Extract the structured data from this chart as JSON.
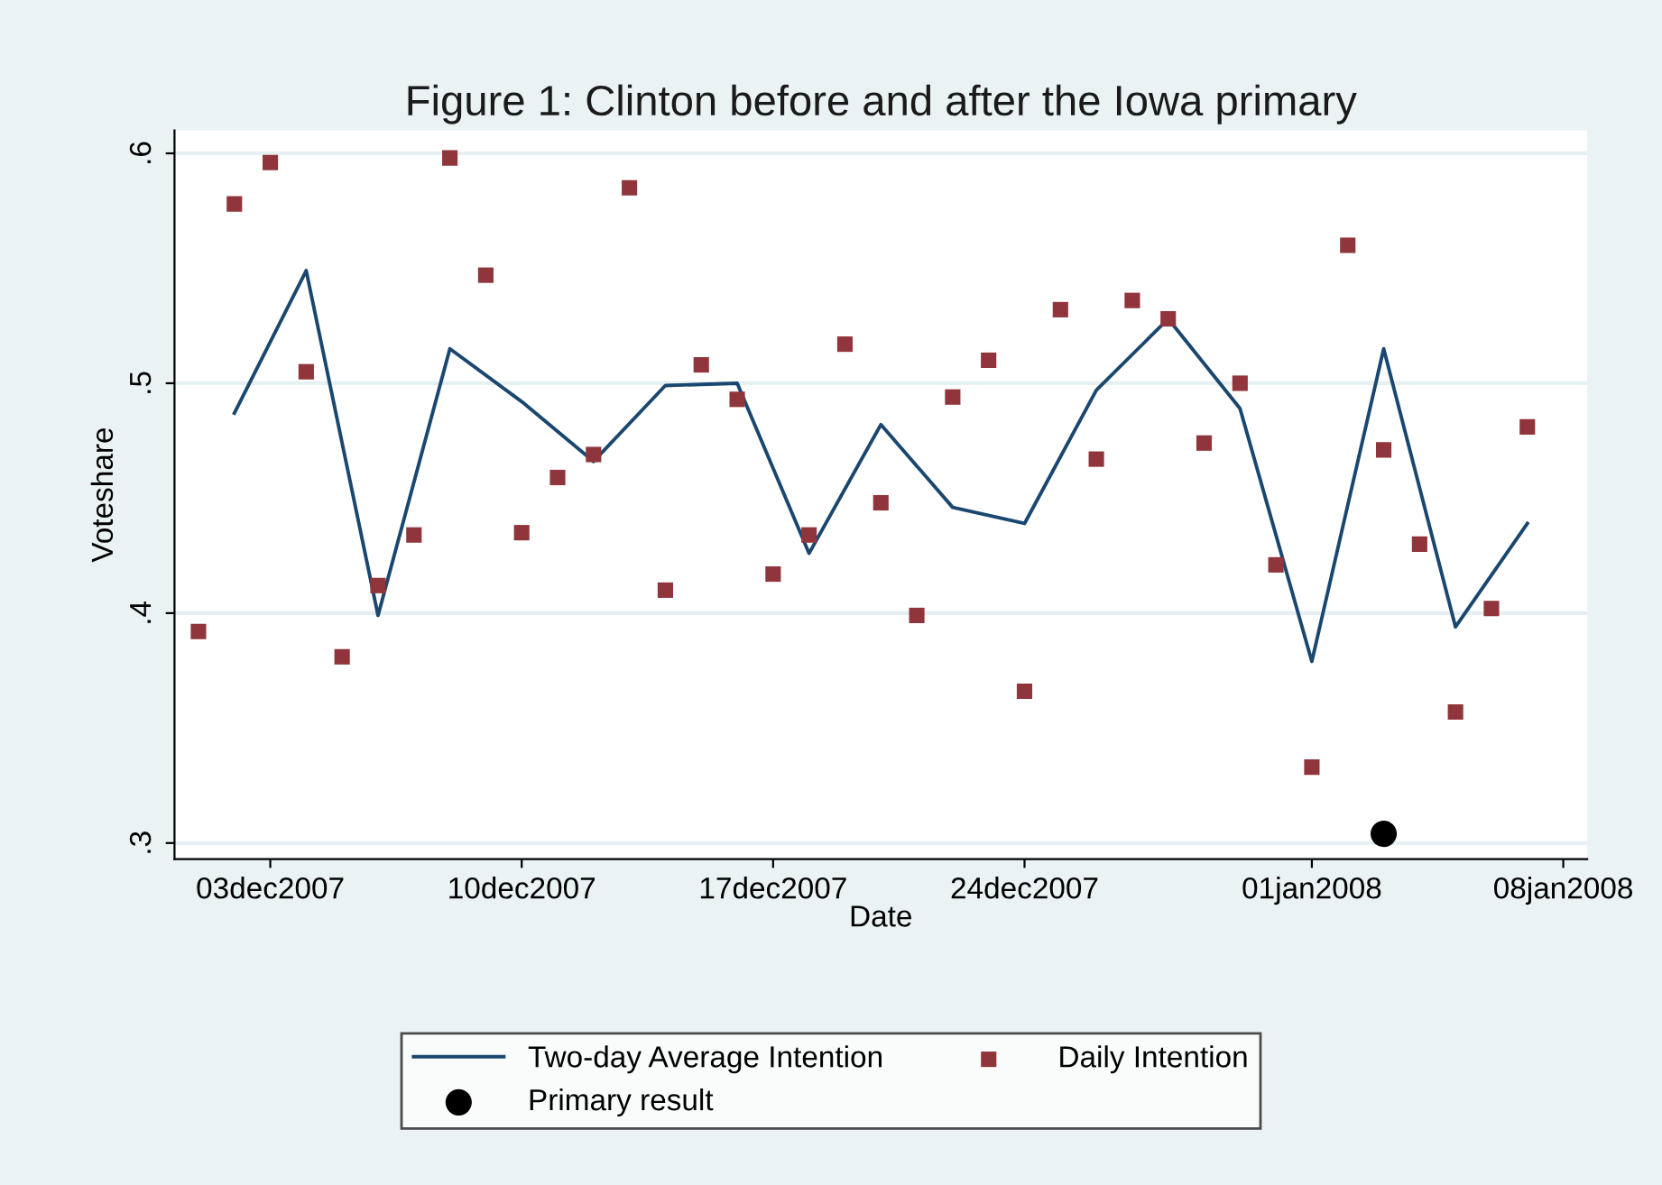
{
  "chart_data": {
    "type": "scatter",
    "title": "Figure 1: Clinton before and after the Iowa primary",
    "xlabel": "Date",
    "ylabel": "Voteshare",
    "xlim": [
      "2007-11-30T08:00",
      "2008-01-08T16:00"
    ],
    "ylim": [
      0.293,
      0.61
    ],
    "xticks": [
      {
        "value": "2007-12-03",
        "label": "03dec2007"
      },
      {
        "value": "2007-12-10",
        "label": "10dec2007"
      },
      {
        "value": "2007-12-17",
        "label": "17dec2007"
      },
      {
        "value": "2007-12-24",
        "label": "24dec2007"
      },
      {
        "value": "2008-01-01",
        "label": "01jan2008"
      },
      {
        "value": "2008-01-08",
        "label": "08jan2008"
      }
    ],
    "yticks": [
      {
        "value": 0.3,
        "label": ".3"
      },
      {
        "value": 0.4,
        "label": ".4"
      },
      {
        "value": 0.5,
        "label": ".5"
      },
      {
        "value": 0.6,
        "label": ".6"
      }
    ],
    "grid": "y",
    "legend": "bottom",
    "series": [
      {
        "name": "Two-day Average Intention",
        "type": "line",
        "color": "#1a476f",
        "marker": "none",
        "line_style": "solid",
        "x": [
          "2007-12-02",
          "2007-12-04",
          "2007-12-06",
          "2007-12-08",
          "2007-12-10",
          "2007-12-12",
          "2007-12-14",
          "2007-12-16",
          "2007-12-18",
          "2007-12-20",
          "2007-12-22",
          "2007-12-24",
          "2007-12-26",
          "2007-12-28",
          "2007-12-30",
          "2008-01-01",
          "2008-01-03",
          "2008-01-05",
          "2008-01-07"
        ],
        "values": [
          0.487,
          0.549,
          0.399,
          0.515,
          0.492,
          0.466,
          0.499,
          0.5,
          0.426,
          0.482,
          0.446,
          0.439,
          0.497,
          0.528,
          0.489,
          0.379,
          0.515,
          0.394,
          0.439
        ]
      },
      {
        "name": "Daily Intention",
        "color": "#90353b",
        "marker": "square",
        "x": [
          "2007-12-01",
          "2007-12-02",
          "2007-12-03",
          "2007-12-04",
          "2007-12-05",
          "2007-12-06",
          "2007-12-07",
          "2007-12-08",
          "2007-12-09",
          "2007-12-10",
          "2007-12-11",
          "2007-12-12",
          "2007-12-13",
          "2007-12-14",
          "2007-12-15",
          "2007-12-16",
          "2007-12-17",
          "2007-12-18",
          "2007-12-19",
          "2007-12-20",
          "2007-12-21",
          "2007-12-22",
          "2007-12-23",
          "2007-12-24",
          "2007-12-25",
          "2007-12-26",
          "2007-12-27",
          "2007-12-28",
          "2007-12-29",
          "2007-12-30",
          "2007-12-31",
          "2008-01-01",
          "2008-01-02",
          "2008-01-03",
          "2008-01-04",
          "2008-01-05",
          "2008-01-06",
          "2008-01-07"
        ],
        "values": [
          0.392,
          0.578,
          0.596,
          0.505,
          0.381,
          0.412,
          0.434,
          0.598,
          0.547,
          0.435,
          0.459,
          0.469,
          0.585,
          0.41,
          0.508,
          0.493,
          0.417,
          0.434,
          0.517,
          0.448,
          0.399,
          0.494,
          0.51,
          0.366,
          0.532,
          0.467,
          0.536,
          0.528,
          0.474,
          0.5,
          0.421,
          0.333,
          0.56,
          0.471,
          0.43,
          0.357,
          0.402,
          0.481
        ]
      },
      {
        "name": "Primary result",
        "color": "#000000",
        "marker": "circle",
        "x": [
          "2008-01-03"
        ],
        "values": [
          0.304
        ]
      }
    ]
  }
}
